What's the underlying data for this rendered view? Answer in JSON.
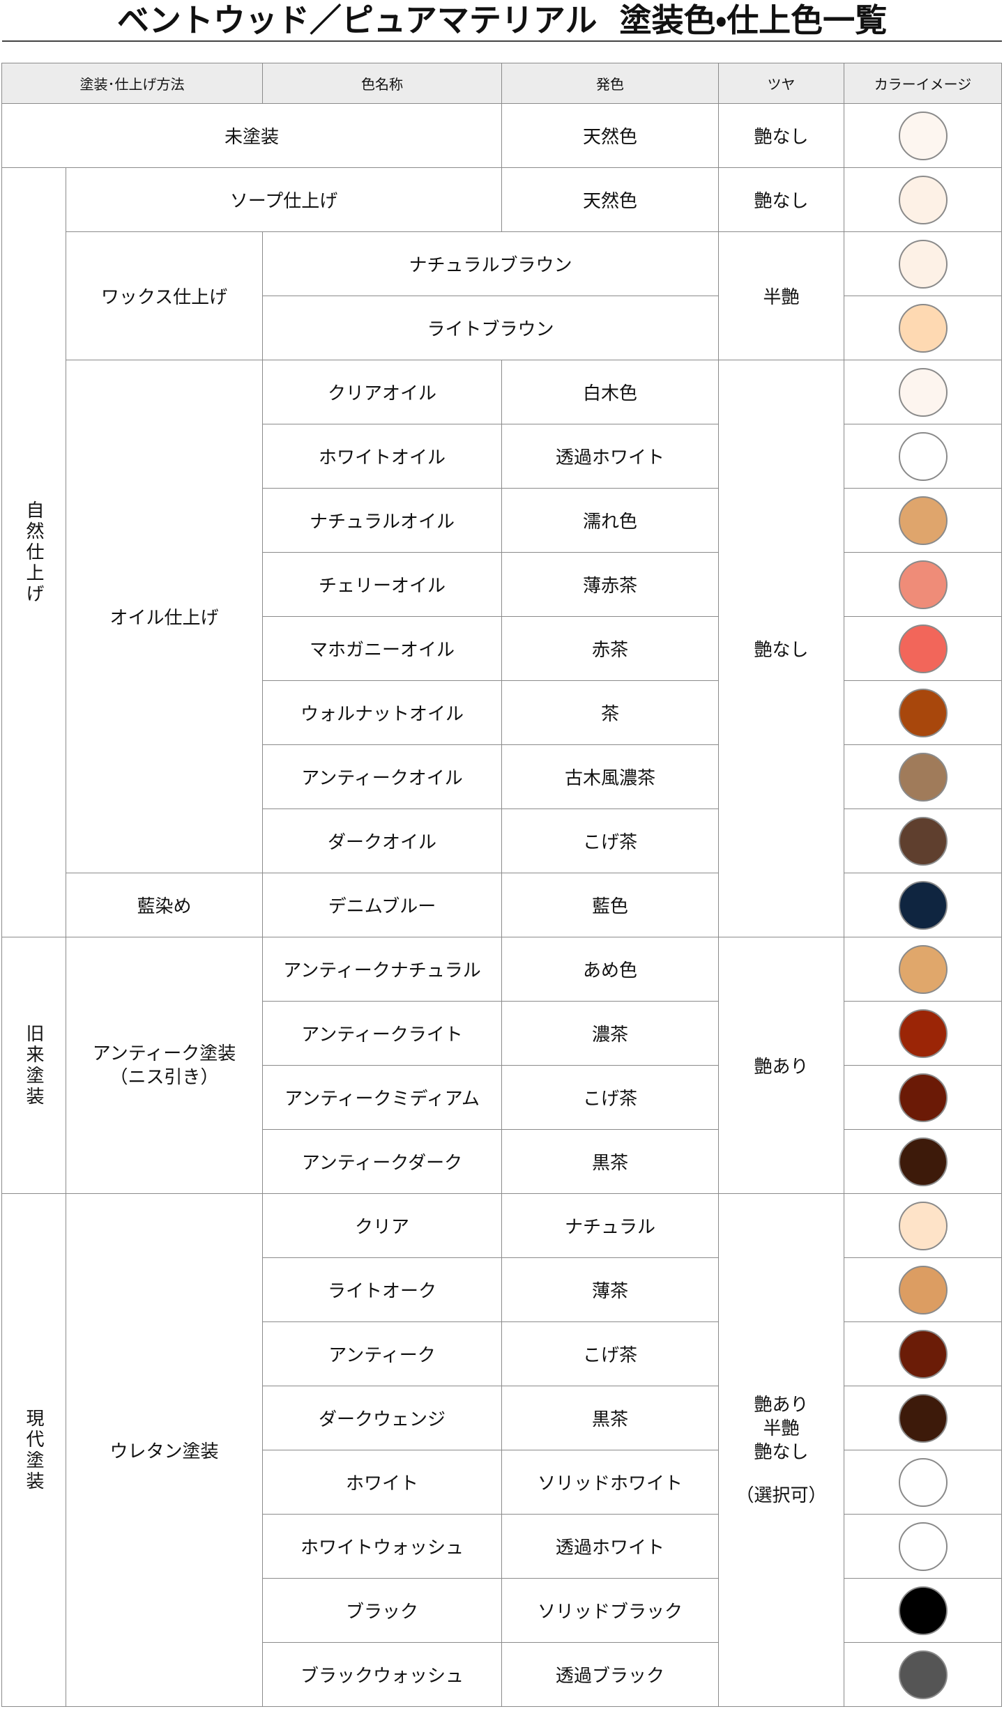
{
  "header": {
    "title": "ベントウッド／ピュアマテリアル  塗装色・仕上色一覧"
  },
  "table": {
    "columns": [
      "塗装･仕上げ方法",
      "色名称",
      "発色",
      "ツヤ",
      "カラーイメージ"
    ],
    "unpainted": {
      "method": "未塗装",
      "tone": "天然色",
      "gloss": "艶なし",
      "swatch": "#fdf6f0"
    },
    "natural": {
      "category": "自然仕上げ",
      "soap": {
        "method": "ソープ仕上げ",
        "tone": "天然色",
        "gloss": "艶なし",
        "swatch": "#fdf1e6"
      },
      "wax": {
        "method": "ワックス仕上げ",
        "gloss": "半艶",
        "items": [
          {
            "name": "ナチュラルブラウン",
            "swatch": "#fdf1e6"
          },
          {
            "name": "ライトブラウン",
            "swatch": "#fed9b2"
          }
        ]
      },
      "oil": {
        "method": "オイル仕上げ",
        "items": [
          {
            "name": "クリアオイル",
            "tone": "白木色",
            "swatch": "#fdf5ef"
          },
          {
            "name": "ホワイトオイル",
            "tone": "透過ホワイト",
            "swatch": "#ffffff"
          },
          {
            "name": "ナチュラルオイル",
            "tone": "濡れ色",
            "swatch": "#dfa56c"
          },
          {
            "name": "チェリーオイル",
            "tone": "薄赤茶",
            "swatch": "#ef8c78"
          },
          {
            "name": "マホガニーオイル",
            "tone": "赤茶",
            "swatch": "#f2665a"
          },
          {
            "name": "ウォルナットオイル",
            "tone": "茶",
            "swatch": "#a8470c"
          },
          {
            "name": "アンティークオイル",
            "tone": "古木風濃茶",
            "swatch": "#a07b5a"
          },
          {
            "name": "ダークオイル",
            "tone": "こげ茶",
            "swatch": "#5f3f2e"
          }
        ]
      },
      "indigo": {
        "method": "藍染め",
        "name": "デニムブルー",
        "tone": "藍色",
        "swatch": "#0f2540"
      },
      "gloss": "艶なし"
    },
    "traditional": {
      "category": "旧来塗装",
      "method_lines": [
        "アンティーク塗装",
        "（ニス引き）"
      ],
      "gloss": "艶あり",
      "items": [
        {
          "name": "アンティークナチュラル",
          "tone": "あめ色",
          "swatch": "#e0a76b"
        },
        {
          "name": "アンティークライト",
          "tone": "濃茶",
          "swatch": "#9b2506"
        },
        {
          "name": "アンティークミディアム",
          "tone": "こげ茶",
          "swatch": "#6b1a06"
        },
        {
          "name": "アンティークダーク",
          "tone": "黒茶",
          "swatch": "#3d1a0a"
        }
      ]
    },
    "modern": {
      "category": "現代塗装",
      "method": "ウレタン塗装",
      "gloss_lines": [
        "艶あり",
        "半艶",
        "艶なし",
        "（選択可）"
      ],
      "items": [
        {
          "name": "クリア",
          "tone": "ナチュラル",
          "swatch": "#fee3c8"
        },
        {
          "name": "ライトオーク",
          "tone": "薄茶",
          "swatch": "#dc9d62"
        },
        {
          "name": "アンティーク",
          "tone": "こげ茶",
          "swatch": "#6b1c07"
        },
        {
          "name": "ダークウェンジ",
          "tone": "黒茶",
          "swatch": "#3d1a0a"
        },
        {
          "name": "ホワイト",
          "tone": "ソリッドホワイト",
          "swatch": "#ffffff"
        },
        {
          "name": "ホワイトウォッシュ",
          "tone": "透過ホワイト",
          "swatch": "#ffffff"
        },
        {
          "name": "ブラック",
          "tone": "ソリッドブラック",
          "swatch": "#000000"
        },
        {
          "name": "ブラックウォッシュ",
          "tone": "透過ブラック",
          "swatch": "#555555"
        }
      ]
    }
  }
}
